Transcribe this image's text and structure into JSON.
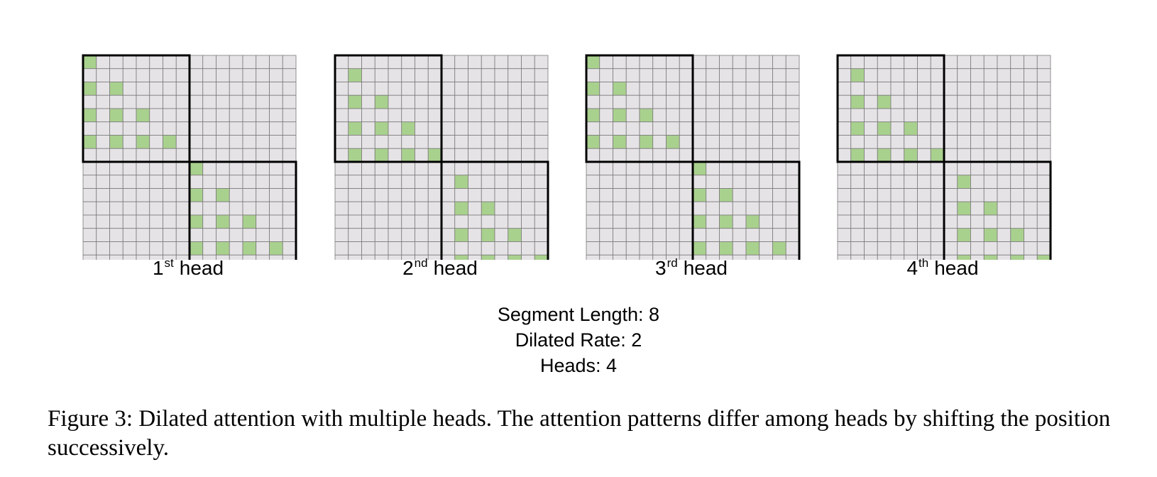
{
  "diagram": {
    "grid_size": 16,
    "segment_size": 8,
    "colors": {
      "cell_fill": "#e6e3e6",
      "cell_border": "#7a7a7a",
      "active_fill": "#a9d18e",
      "segment_border": "#000000"
    },
    "heads": [
      {
        "ordinal": "1",
        "suffix": "st",
        "word": "head",
        "offset": 0
      },
      {
        "ordinal": "2",
        "suffix": "nd",
        "word": "head",
        "offset": 1
      },
      {
        "ordinal": "3",
        "suffix": "rd",
        "word": "head",
        "offset": 0
      },
      {
        "ordinal": "4",
        "suffix": "th",
        "word": "head",
        "offset": 1
      }
    ]
  },
  "params": {
    "segment_length": "Segment Length: 8",
    "dilated_rate": "Dilated Rate: 2",
    "heads": "Heads: 4"
  },
  "caption": "Figure 3: Dilated attention with multiple heads. The attention patterns differ among heads by shifting the position successively."
}
